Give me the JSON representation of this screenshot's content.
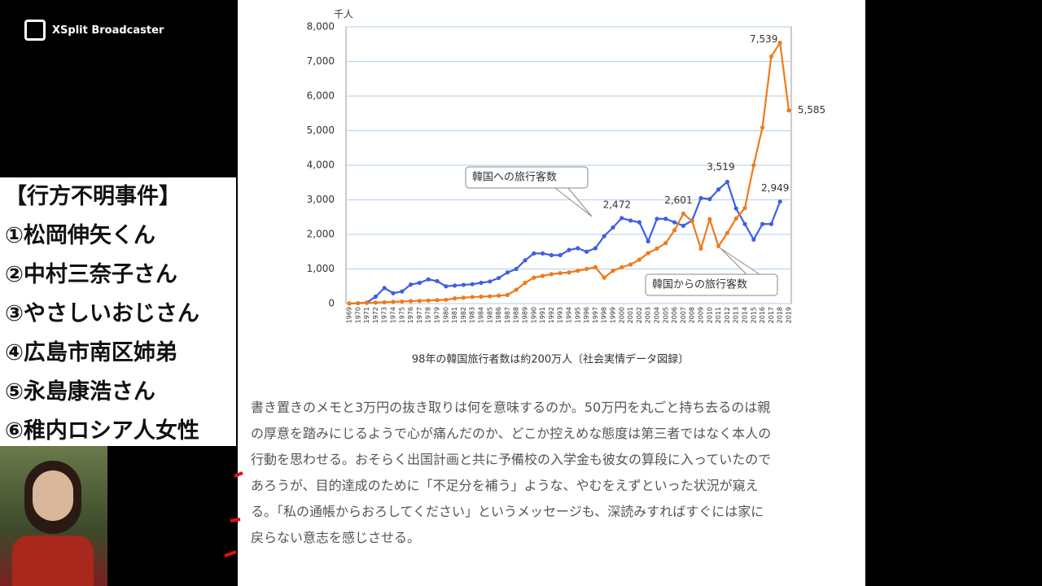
{
  "app": {
    "name": "XSplit Broadcaster"
  },
  "sidebar": {
    "title": "【行方不明事件】",
    "items": [
      "①松岡伸矢くん",
      "②中村三奈子さん",
      "③やさしいおじさん",
      "④広島市南区姉弟",
      "⑤永島康浩さん",
      "⑥稚内ロシア人女性"
    ]
  },
  "chart_data": {
    "type": "line",
    "y_label": "千人",
    "x": [
      1969,
      1970,
      1971,
      1972,
      1973,
      1974,
      1975,
      1976,
      1977,
      1978,
      1979,
      1980,
      1981,
      1982,
      1983,
      1984,
      1985,
      1986,
      1987,
      1988,
      1989,
      1990,
      1991,
      1992,
      1993,
      1994,
      1995,
      1996,
      1997,
      1998,
      1999,
      2000,
      2001,
      2002,
      2003,
      2004,
      2005,
      2006,
      2007,
      2008,
      2009,
      2010,
      2011,
      2012,
      2013,
      2014,
      2015,
      2016,
      2017,
      2018,
      2019
    ],
    "ylim": [
      0,
      8000
    ],
    "yticks": [
      0,
      {
        "value": 1000,
        "label": "1,000"
      },
      {
        "value": 2000,
        "label": "2,000"
      },
      {
        "value": 3000,
        "label": "3,000"
      },
      {
        "value": 4000,
        "label": "4,000"
      },
      {
        "value": 5000,
        "label": "5,000"
      },
      {
        "value": 6000,
        "label": "6,000"
      },
      {
        "value": 7000,
        "label": "7,000"
      },
      {
        "value": 8000,
        "label": "8,000"
      }
    ],
    "grid": true,
    "series": [
      {
        "name": "韓国への旅行客数",
        "color": "#3f5fe0",
        "values": [
          5,
          10,
          30,
          200,
          450,
          300,
          350,
          550,
          600,
          700,
          650,
          500,
          520,
          540,
          560,
          600,
          640,
          740,
          900,
          1000,
          1250,
          1450,
          1450,
          1400,
          1400,
          1550,
          1600,
          1500,
          1600,
          1950,
          2200,
          2472,
          2400,
          2350,
          1800,
          2450,
          2450,
          2350,
          2250,
          2400,
          3050,
          3020,
          3300,
          3519,
          2750,
          2300,
          1850,
          2300,
          2300,
          2949,
          null
        ],
        "value_labels": [
          null,
          null,
          null,
          null,
          null,
          null,
          null,
          null,
          null,
          null,
          null,
          null,
          null,
          null,
          null,
          null,
          null,
          null,
          null,
          null,
          null,
          null,
          null,
          null,
          null,
          null,
          null,
          null,
          null,
          null,
          null,
          "2,472",
          null,
          null,
          null,
          null,
          null,
          null,
          null,
          null,
          null,
          null,
          null,
          "3,519",
          null,
          null,
          null,
          null,
          null,
          "2,949",
          null
        ]
      },
      {
        "name": "韓国からの旅行客数",
        "color": "#f07a1a",
        "values": [
          5,
          10,
          20,
          30,
          40,
          50,
          60,
          70,
          80,
          90,
          100,
          110,
          150,
          170,
          190,
          200,
          210,
          230,
          250,
          400,
          600,
          750,
          800,
          850,
          880,
          900,
          950,
          1000,
          1050,
          750,
          950,
          1050,
          1130,
          1270,
          1460,
          1590,
          1750,
          2120,
          2601,
          2380,
          1590,
          2440,
          1660,
          2040,
          2460,
          2760,
          4000,
          5090,
          7140,
          7539,
          5585
        ],
        "value_labels": [
          null,
          null,
          null,
          null,
          null,
          null,
          null,
          null,
          null,
          null,
          null,
          null,
          null,
          null,
          null,
          null,
          null,
          null,
          null,
          null,
          null,
          null,
          null,
          null,
          null,
          null,
          null,
          null,
          null,
          null,
          null,
          null,
          null,
          null,
          null,
          null,
          null,
          null,
          "2,601",
          null,
          null,
          null,
          null,
          null,
          null,
          null,
          null,
          null,
          null,
          "7,539",
          "5,585"
        ]
      }
    ]
  },
  "caption": "98年の韓国旅行者数は約200万人〔社会実情データ図録〕",
  "article": {
    "lines": [
      "書き置きのメモと3万円の抜き取りは何を意味するのか。50万円を丸ごと持ち去るのは親",
      "の厚意を踏みにじるようで心が痛んだのか、どこか控えめな態度は第三者ではなく本人の",
      "行動を思わせる。おそらく出国計画と共に予備校の入学金も彼女の算段に入っていたので",
      "あろうが、目的達成のために「不足分を補う」ような、やむをえずといった状況が窺え",
      "る。「私の通帳からおろしてください」というメッセージも、深読みすればすぐには家に",
      "戻らない意志を感じさせる。"
    ]
  }
}
